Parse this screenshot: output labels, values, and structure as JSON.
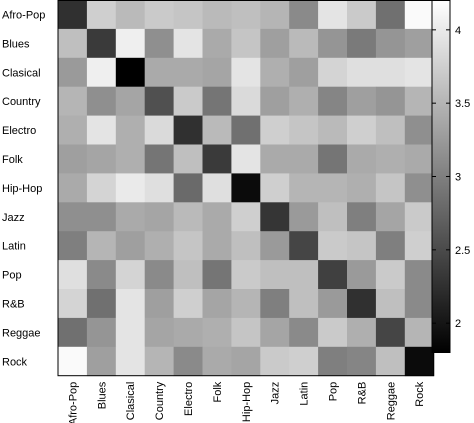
{
  "chart_data": {
    "type": "heatmap",
    "title": "",
    "xlabel": "",
    "ylabel": "",
    "rows": [
      "Afro-Pop",
      "Blues",
      "Clasical",
      "Country",
      "Electro",
      "Folk",
      "Hip-Hop",
      "Jazz",
      "Latin",
      "Pop",
      "R&B",
      "Reggae",
      "Rock"
    ],
    "cols": [
      "Afro-Pop",
      "Blues",
      "Clasical",
      "Country",
      "Electro",
      "Folk",
      "Hip-Hop",
      "Jazz",
      "Latin",
      "Pop",
      "R&B",
      "Reggae",
      "Rock"
    ],
    "values": [
      [
        2.25,
        3.75,
        3.55,
        3.7,
        3.65,
        3.55,
        3.6,
        3.5,
        3.1,
        3.95,
        3.7,
        2.85,
        4.15
      ],
      [
        3.6,
        2.35,
        4.05,
        3.15,
        3.95,
        3.4,
        3.65,
        3.3,
        3.55,
        3.2,
        2.95,
        3.2,
        3.3
      ],
      [
        3.25,
        4.05,
        1.8,
        3.4,
        3.4,
        3.35,
        3.95,
        3.45,
        3.3,
        3.8,
        3.9,
        3.9,
        3.95
      ],
      [
        3.5,
        3.15,
        3.35,
        2.55,
        3.7,
        2.9,
        3.85,
        3.3,
        3.45,
        3.05,
        3.3,
        3.2,
        3.5
      ],
      [
        3.45,
        3.95,
        3.45,
        3.85,
        2.25,
        3.55,
        2.85,
        3.75,
        3.65,
        3.55,
        3.75,
        3.6,
        3.15
      ],
      [
        3.3,
        3.35,
        3.45,
        2.9,
        3.6,
        2.35,
        3.95,
        3.4,
        3.4,
        2.9,
        3.4,
        3.45,
        3.4
      ],
      [
        3.4,
        3.8,
        4.0,
        3.9,
        2.8,
        3.9,
        1.9,
        3.75,
        3.5,
        3.5,
        3.45,
        3.65,
        3.15
      ],
      [
        3.15,
        3.15,
        3.4,
        3.35,
        3.55,
        3.4,
        3.75,
        2.3,
        3.25,
        3.6,
        3.0,
        3.35,
        3.7
      ],
      [
        3.0,
        3.5,
        3.3,
        3.45,
        3.65,
        3.4,
        3.6,
        3.25,
        2.45,
        3.7,
        3.65,
        3.0,
        3.75
      ],
      [
        3.9,
        3.1,
        3.8,
        3.1,
        3.6,
        2.9,
        3.7,
        3.6,
        3.6,
        2.4,
        3.25,
        3.7,
        3.1
      ],
      [
        3.8,
        2.85,
        3.95,
        3.3,
        3.75,
        3.35,
        3.5,
        3.0,
        3.6,
        3.25,
        2.25,
        3.6,
        3.1
      ],
      [
        2.85,
        3.2,
        3.95,
        3.35,
        3.4,
        3.45,
        3.65,
        3.35,
        3.1,
        3.7,
        3.45,
        2.45,
        3.5
      ],
      [
        4.15,
        3.3,
        3.95,
        3.5,
        3.1,
        3.4,
        3.35,
        3.7,
        3.75,
        3.0,
        3.05,
        3.6,
        1.9
      ]
    ],
    "colorbar": {
      "min": 1.8,
      "max": 4.2,
      "ticks": [
        "2",
        "2.5",
        "3",
        "3.5",
        "4"
      ],
      "tick_values": [
        2,
        2.5,
        3,
        3.5,
        4
      ],
      "colormap": "gray"
    },
    "grid": false
  }
}
